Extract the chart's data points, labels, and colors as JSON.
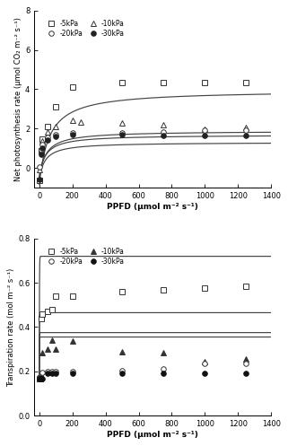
{
  "top_chart": {
    "ylabel": "Net photosynthesis rate (μmol CO₂ m⁻² s⁻¹)",
    "xlabel": "PPFD (μmol m⁻² s⁻¹)",
    "ylim": [
      -1,
      8
    ],
    "xlim": [
      -30,
      1400
    ],
    "yticks": [
      0,
      2,
      4,
      6,
      8
    ],
    "xticks": [
      0,
      200,
      400,
      600,
      800,
      1000,
      1200,
      1400
    ],
    "series": {
      "5kPa": {
        "Amax": 4.8,
        "alpha": 0.08,
        "Rd": 0.85
      },
      "10kPa": {
        "Amax": 2.4,
        "alpha": 0.06,
        "Rd": 0.52
      },
      "20kPa": {
        "Amax": 2.1,
        "alpha": 0.055,
        "Rd": 0.42
      },
      "30kPa": {
        "Amax": 1.9,
        "alpha": 0.055,
        "Rd": 0.6
      }
    },
    "scatter_data": {
      "5kPa": {
        "x": [
          0,
          10,
          20,
          50,
          100,
          200,
          500,
          750,
          1000,
          1250
        ],
        "y": [
          -0.65,
          0.85,
          1.45,
          2.1,
          3.1,
          4.1,
          4.35,
          4.35,
          4.35,
          4.35
        ]
      },
      "10kPa": {
        "x": [
          0,
          10,
          20,
          50,
          100,
          200,
          250,
          500,
          750,
          1000,
          1250
        ],
        "y": [
          -0.1,
          0.9,
          1.35,
          1.85,
          2.1,
          2.4,
          2.35,
          2.3,
          2.2,
          1.95,
          2.05
        ]
      },
      "20kPa": {
        "x": [
          0,
          10,
          20,
          50,
          100,
          200,
          500,
          750,
          1000,
          1250
        ],
        "y": [
          0.05,
          0.9,
          1.2,
          1.55,
          1.7,
          1.8,
          1.8,
          1.85,
          1.9,
          1.9
        ]
      },
      "30kPa": {
        "x": [
          0,
          10,
          20,
          50,
          100,
          200,
          500,
          750,
          1000,
          1250
        ],
        "y": [
          -0.6,
          0.7,
          1.0,
          1.4,
          1.6,
          1.7,
          1.7,
          1.65,
          1.65,
          1.65
        ]
      }
    }
  },
  "bottom_chart": {
    "ylabel": "Transpiration rate (mol m⁻² s⁻¹)",
    "xlabel": "PPFD (μmol m⁻² s⁻¹)",
    "ylim": [
      0.0,
      0.8
    ],
    "xlim": [
      -30,
      1400
    ],
    "yticks": [
      0.0,
      0.2,
      0.4,
      0.6,
      0.8
    ],
    "xticks": [
      0,
      200,
      400,
      600,
      800,
      1000,
      1200,
      1400
    ],
    "series": {
      "5kPa": {
        "Tmax": 0.555,
        "k": 1.0,
        "T0": 0.165
      },
      "10kPa": {
        "Tmax": 0.3,
        "k": 1.0,
        "T0": 0.165
      },
      "20kPa": {
        "Tmax": 0.21,
        "k": 1.0,
        "T0": 0.165
      },
      "30kPa": {
        "Tmax": 0.19,
        "k": 1.0,
        "T0": 0.165
      }
    },
    "scatter_data": {
      "5kPa": {
        "x": [
          0,
          5,
          10,
          20,
          50,
          75,
          100,
          200,
          500,
          750,
          1000,
          1250
        ],
        "y": [
          0.165,
          0.17,
          0.44,
          0.46,
          0.47,
          0.48,
          0.54,
          0.54,
          0.56,
          0.57,
          0.575,
          0.585
        ]
      },
      "10kPa": {
        "x": [
          0,
          5,
          10,
          20,
          50,
          75,
          100,
          200,
          500,
          750,
          1000,
          1250
        ],
        "y": [
          0.165,
          0.165,
          0.17,
          0.285,
          0.3,
          0.34,
          0.3,
          0.335,
          0.29,
          0.285,
          0.245,
          0.255
        ]
      },
      "20kPa": {
        "x": [
          0,
          5,
          10,
          20,
          50,
          75,
          100,
          200,
          500,
          750,
          1000,
          1250
        ],
        "y": [
          0.165,
          0.165,
          0.165,
          0.195,
          0.2,
          0.2,
          0.2,
          0.2,
          0.205,
          0.21,
          0.235,
          0.235
        ]
      },
      "30kPa": {
        "x": [
          0,
          5,
          10,
          20,
          50,
          75,
          100,
          200,
          500,
          750,
          1000,
          1250
        ],
        "y": [
          0.165,
          0.165,
          0.165,
          0.165,
          0.19,
          0.19,
          0.19,
          0.19,
          0.19,
          0.19,
          0.19,
          0.19
        ]
      }
    }
  },
  "markers_top": {
    "5kPa": {
      "marker": "s",
      "mfc": "white",
      "mec": "#333333",
      "ms": 4.0,
      "mew": 0.7
    },
    "10kPa": {
      "marker": "^",
      "mfc": "white",
      "mec": "#333333",
      "ms": 4.0,
      "mew": 0.7
    },
    "20kPa": {
      "marker": "o",
      "mfc": "white",
      "mec": "#333333",
      "ms": 4.0,
      "mew": 0.7
    },
    "30kPa": {
      "marker": "o",
      "mfc": "#222222",
      "mec": "#222222",
      "ms": 4.0,
      "mew": 0.7
    }
  },
  "markers_bot": {
    "5kPa": {
      "marker": "s",
      "mfc": "white",
      "mec": "#333333",
      "ms": 4.0,
      "mew": 0.7
    },
    "10kPa": {
      "marker": "^",
      "mfc": "#333333",
      "mec": "#333333",
      "ms": 4.0,
      "mew": 0.7
    },
    "20kPa": {
      "marker": "o",
      "mfc": "white",
      "mec": "#333333",
      "ms": 4.0,
      "mew": 0.7
    },
    "30kPa": {
      "marker": "o",
      "mfc": "#111111",
      "mec": "#111111",
      "ms": 4.0,
      "mew": 0.7
    }
  },
  "curve_color": "#444444",
  "bg_color": "#ffffff"
}
